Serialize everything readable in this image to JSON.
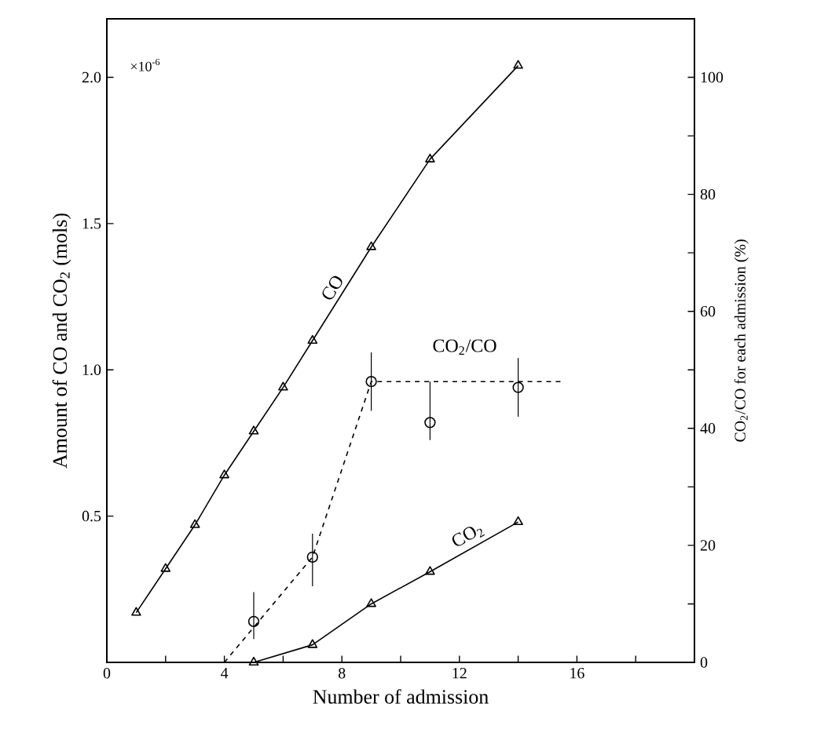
{
  "chart_data": {
    "type": "line",
    "xlabel": "Number of admission",
    "ylabel": "Amount of CO and CO$_{2}$ (mols)",
    "y2label": "CO$_{2}$/CO for each admission (%)",
    "annotations": [
      "×10$^{-6}$"
    ],
    "xlim": [
      0,
      20
    ],
    "xticks": [
      0,
      {
        "value": 2,
        "label": null
      },
      4,
      {
        "value": 6,
        "label": null
      },
      8,
      {
        "value": 10,
        "label": null
      },
      12,
      {
        "value": 14,
        "label": null
      },
      16,
      {
        "value": 18,
        "label": null
      }
    ],
    "ylim": [
      0,
      2.2
    ],
    "yticks": [
      {
        "value": 0.5,
        "label": "0.5"
      },
      {
        "value": 1,
        "label": "1.0"
      },
      {
        "value": 1.5,
        "label": "1.5"
      },
      {
        "value": 2,
        "label": "2.0"
      }
    ],
    "y2lim": [
      0,
      110
    ],
    "y2ticks": [
      0,
      {
        "value": 10,
        "label": null
      },
      20,
      {
        "value": 30,
        "label": null
      },
      40,
      {
        "value": 50,
        "label": null
      },
      60,
      {
        "value": 70,
        "label": null
      },
      80,
      {
        "value": 90,
        "label": null
      },
      100
    ],
    "series": [
      {
        "name": "CO",
        "color": "#000000",
        "marker": "triangle",
        "x": [
          1,
          2,
          3,
          4,
          5,
          6,
          7,
          9,
          11,
          14
        ],
        "values": [
          0.17,
          0.32,
          0.47,
          0.64,
          0.79,
          0.94,
          1.1,
          1.42,
          1.72,
          2.04
        ]
      },
      {
        "name": "CO$_{2}$",
        "color": "#000000",
        "marker": "triangle",
        "x": [
          5,
          7,
          9,
          11,
          14
        ],
        "values": [
          0,
          0.06,
          0.2,
          0.31,
          0.48
        ]
      },
      {
        "name": "CO$_{2}$/CO",
        "type": "scatter",
        "axis": "y2",
        "color": "#000000",
        "marker": "circle",
        "x": [
          5,
          7,
          9,
          11,
          14
        ],
        "values": [
          7,
          18,
          48,
          41,
          47
        ],
        "errors": [
          [
            4,
            12
          ],
          [
            13,
            22
          ],
          [
            43,
            53
          ],
          [
            38,
            48
          ],
          [
            42,
            52
          ]
        ]
      },
      {
        "axis": "y2",
        "color": "#000000",
        "marker": "none",
        "line_style": "dashed",
        "x": [
          4,
          7,
          9,
          15.5
        ],
        "values": [
          0,
          18,
          48,
          48
        ]
      }
    ]
  }
}
